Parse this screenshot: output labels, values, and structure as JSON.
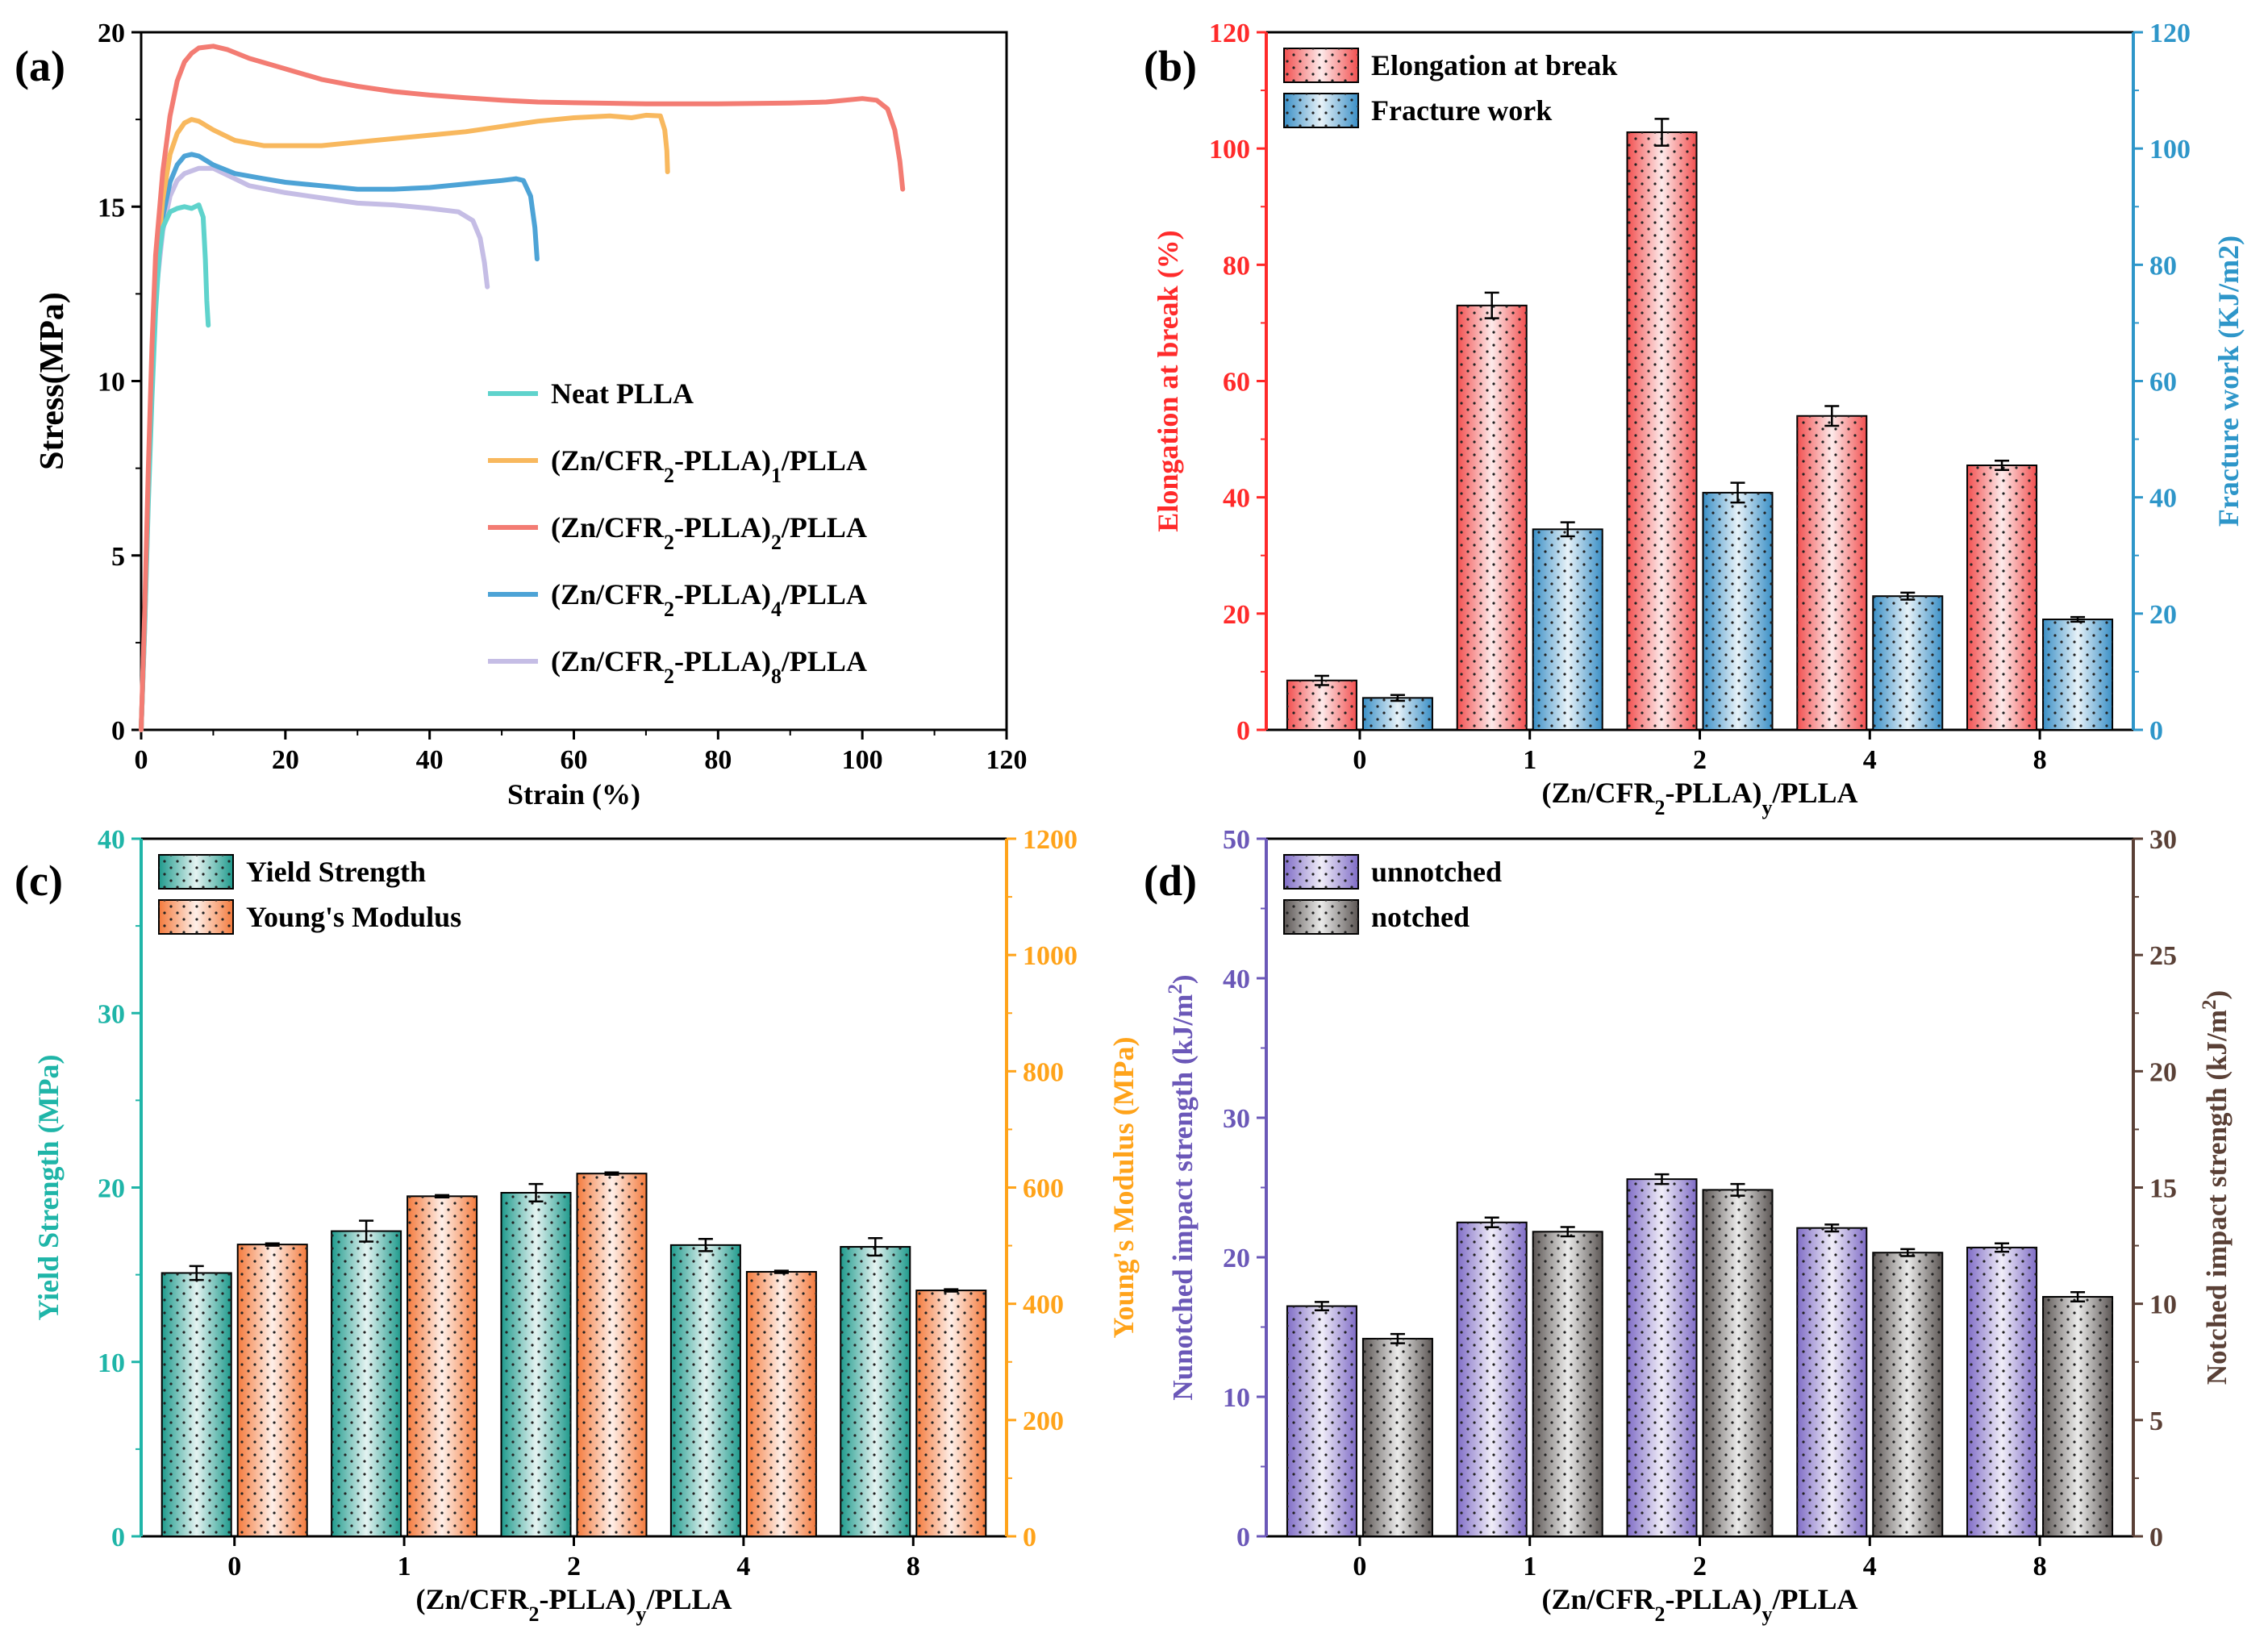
{
  "panels": [
    {
      "id": "a",
      "tag": "(a)"
    },
    {
      "id": "b",
      "tag": "(b)"
    },
    {
      "id": "c",
      "tag": "(c)"
    },
    {
      "id": "d",
      "tag": "(d)"
    }
  ],
  "chart_data": [
    {
      "panel": "a",
      "type": "line",
      "xlabel": "Strain (%)",
      "ylabel": "Stress(MPa)",
      "xlim": [
        0,
        120
      ],
      "ylim": [
        0,
        20
      ],
      "xticks": [
        0,
        20,
        40,
        60,
        80,
        100,
        120
      ],
      "yticks": [
        0,
        5,
        10,
        15,
        20
      ],
      "legend_position": "center-right",
      "series": [
        {
          "name": "Neat PLLA",
          "label": {
            "pre": "Neat PLLA",
            "sub": "",
            "mid": "",
            "sub2": "",
            "post": ""
          },
          "color": "#5fd3cc",
          "points": [
            [
              0,
              0
            ],
            [
              0.5,
              3
            ],
            [
              1,
              6.5
            ],
            [
              1.5,
              9.5
            ],
            [
              2,
              12
            ],
            [
              2.5,
              13.6
            ],
            [
              3,
              14.4
            ],
            [
              4,
              14.85
            ],
            [
              5,
              14.95
            ],
            [
              6,
              15.0
            ],
            [
              7,
              14.95
            ],
            [
              8,
              15.05
            ],
            [
              8.6,
              14.7
            ],
            [
              8.9,
              13.5
            ],
            [
              9.1,
              12.3
            ],
            [
              9.3,
              11.6
            ]
          ]
        },
        {
          "name": "(Zn/CFR2-PLLA)1/PLLA",
          "label": {
            "pre": "(Zn/CFR",
            "sub": "2",
            "mid": "-PLLA)",
            "sub2": "1",
            "post": "/PLLA"
          },
          "color": "#f8b85e",
          "points": [
            [
              0,
              0
            ],
            [
              0.5,
              3.2
            ],
            [
              1,
              7
            ],
            [
              1.5,
              10.5
            ],
            [
              2,
              13
            ],
            [
              3,
              15.2
            ],
            [
              4,
              16.5
            ],
            [
              5,
              17.1
            ],
            [
              6,
              17.4
            ],
            [
              7,
              17.5
            ],
            [
              8,
              17.45
            ],
            [
              10,
              17.2
            ],
            [
              13,
              16.9
            ],
            [
              17,
              16.75
            ],
            [
              20,
              16.75
            ],
            [
              25,
              16.75
            ],
            [
              30,
              16.85
            ],
            [
              35,
              16.95
            ],
            [
              40,
              17.05
            ],
            [
              45,
              17.15
            ],
            [
              50,
              17.3
            ],
            [
              55,
              17.45
            ],
            [
              60,
              17.55
            ],
            [
              65,
              17.6
            ],
            [
              68,
              17.55
            ],
            [
              70,
              17.62
            ],
            [
              72,
              17.6
            ],
            [
              72.6,
              17.2
            ],
            [
              72.9,
              16.6
            ],
            [
              73,
              16.0
            ]
          ]
        },
        {
          "name": "(Zn/CFR2-PLLA)2/PLLA",
          "label": {
            "pre": "(Zn/CFR",
            "sub": "2",
            "mid": "-PLLA)",
            "sub2": "2",
            "post": "/PLLA"
          },
          "color": "#f37c73",
          "points": [
            [
              0,
              0
            ],
            [
              0.5,
              3.5
            ],
            [
              1,
              7.5
            ],
            [
              1.5,
              11
            ],
            [
              2,
              13.6
            ],
            [
              3,
              16
            ],
            [
              4,
              17.6
            ],
            [
              5,
              18.6
            ],
            [
              6,
              19.15
            ],
            [
              7,
              19.4
            ],
            [
              8,
              19.55
            ],
            [
              10,
              19.6
            ],
            [
              12,
              19.5
            ],
            [
              15,
              19.25
            ],
            [
              20,
              18.95
            ],
            [
              25,
              18.65
            ],
            [
              30,
              18.45
            ],
            [
              35,
              18.3
            ],
            [
              40,
              18.2
            ],
            [
              45,
              18.12
            ],
            [
              50,
              18.05
            ],
            [
              55,
              18.0
            ],
            [
              60,
              17.98
            ],
            [
              70,
              17.95
            ],
            [
              80,
              17.95
            ],
            [
              90,
              17.97
            ],
            [
              95,
              18.0
            ],
            [
              100,
              18.1
            ],
            [
              102,
              18.05
            ],
            [
              103.5,
              17.8
            ],
            [
              104.5,
              17.2
            ],
            [
              105.2,
              16.3
            ],
            [
              105.6,
              15.5
            ]
          ]
        },
        {
          "name": "(Zn/CFR2-PLLA)4/PLLA",
          "label": {
            "pre": "(Zn/CFR",
            "sub": "2",
            "mid": "-PLLA)",
            "sub2": "4",
            "post": "/PLLA"
          },
          "color": "#4da3d6",
          "points": [
            [
              0,
              0
            ],
            [
              0.5,
              3.2
            ],
            [
              1,
              7
            ],
            [
              1.5,
              10.3
            ],
            [
              2,
              12.7
            ],
            [
              3,
              14.7
            ],
            [
              4,
              15.7
            ],
            [
              5,
              16.2
            ],
            [
              6,
              16.45
            ],
            [
              7,
              16.5
            ],
            [
              8,
              16.45
            ],
            [
              10,
              16.2
            ],
            [
              13,
              15.95
            ],
            [
              17,
              15.8
            ],
            [
              20,
              15.7
            ],
            [
              25,
              15.6
            ],
            [
              30,
              15.5
            ],
            [
              35,
              15.5
            ],
            [
              40,
              15.55
            ],
            [
              45,
              15.65
            ],
            [
              50,
              15.75
            ],
            [
              52,
              15.8
            ],
            [
              53,
              15.75
            ],
            [
              54,
              15.3
            ],
            [
              54.6,
              14.4
            ],
            [
              54.9,
              13.5
            ]
          ]
        },
        {
          "name": "(Zn/CFR2-PLLA)8/PLLA",
          "label": {
            "pre": "(Zn/CFR",
            "sub": "2",
            "mid": "-PLLA)",
            "sub2": "8",
            "post": "/PLLA"
          },
          "color": "#c5bde5",
          "points": [
            [
              0,
              0
            ],
            [
              0.5,
              3
            ],
            [
              1,
              6.8
            ],
            [
              1.5,
              10
            ],
            [
              2,
              12.4
            ],
            [
              3,
              14.3
            ],
            [
              4,
              15.3
            ],
            [
              5,
              15.75
            ],
            [
              6,
              15.95
            ],
            [
              8,
              16.1
            ],
            [
              10,
              16.1
            ],
            [
              12,
              15.9
            ],
            [
              15,
              15.6
            ],
            [
              20,
              15.4
            ],
            [
              25,
              15.25
            ],
            [
              30,
              15.1
            ],
            [
              35,
              15.05
            ],
            [
              40,
              14.95
            ],
            [
              44,
              14.85
            ],
            [
              46,
              14.6
            ],
            [
              47,
              14.1
            ],
            [
              47.6,
              13.4
            ],
            [
              48,
              12.7
            ]
          ]
        }
      ]
    },
    {
      "panel": "b",
      "type": "bar",
      "categories": [
        "0",
        "1",
        "2",
        "4",
        "8"
      ],
      "xlabel": {
        "pre": "(Zn/CFR",
        "sub": "2",
        "mid": "-PLLA)",
        "sub2": "y",
        "post": "/PLLA"
      },
      "ylabel_left": "Elongation at break (%)",
      "ylabel_right": "Fracture work (KJ/m2)",
      "ylim_left": [
        0,
        120
      ],
      "yticks_left": [
        0,
        20,
        40,
        60,
        80,
        100,
        120
      ],
      "ylim_right": [
        0,
        120
      ],
      "yticks_right": [
        0,
        20,
        40,
        60,
        80,
        100,
        120
      ],
      "left_axis_color": "#ff2a2a",
      "right_axis_color": "#2e96c9",
      "legend_position": "top-left",
      "series": [
        {
          "name": "Elongation at break",
          "axis": "left",
          "color": "#f24f4f",
          "values": [
            8.5,
            73,
            102.8,
            54,
            45.5
          ],
          "errors": [
            0.8,
            2.2,
            2.3,
            1.7,
            0.8
          ]
        },
        {
          "name": "Fracture work",
          "axis": "right",
          "color": "#3a8fc6",
          "values": [
            5.5,
            34.5,
            40.8,
            23,
            19
          ],
          "errors": [
            0.5,
            1.2,
            1.7,
            0.6,
            0.4
          ]
        }
      ]
    },
    {
      "panel": "c",
      "type": "bar",
      "categories": [
        "0",
        "1",
        "2",
        "4",
        "8"
      ],
      "xlabel": {
        "pre": "(Zn/CFR",
        "sub": "2",
        "mid": "-PLLA)",
        "sub2": "y",
        "post": "/PLLA"
      },
      "ylabel_left": "Yield Strength (MPa)",
      "ylabel_right": "Young's Modulus (MPa)",
      "ylim_left": [
        0,
        40
      ],
      "yticks_left": [
        0,
        10,
        20,
        30,
        40
      ],
      "ylim_right": [
        0,
        1200
      ],
      "yticks_right": [
        0,
        200,
        400,
        600,
        800,
        1000,
        1200
      ],
      "left_axis_color": "#1fb5a8",
      "right_axis_color": "#ffa31a",
      "legend_position": "top-left",
      "series": [
        {
          "name": "Yield Strength",
          "axis": "left",
          "color": "#1e9a8c",
          "values": [
            15.1,
            17.5,
            19.7,
            16.7,
            16.6
          ],
          "errors": [
            0.4,
            0.6,
            0.5,
            0.35,
            0.5
          ]
        },
        {
          "name": "Young's Modulus",
          "axis": "right",
          "color": "#f47a3c",
          "values": [
            502,
            585,
            624,
            455,
            423
          ],
          "errors": [
            2,
            2,
            2,
            2,
            2
          ]
        }
      ]
    },
    {
      "panel": "d",
      "type": "bar",
      "categories": [
        "0",
        "1",
        "2",
        "4",
        "8"
      ],
      "xlabel": {
        "pre": "(Zn/CFR",
        "sub": "2",
        "mid": "-PLLA)",
        "sub2": "y",
        "post": "/PLLA"
      },
      "ylabel_left": {
        "pre": "Nunotched impact strength (kJ/m",
        "sup": "2",
        "post": ")"
      },
      "ylabel_right": {
        "pre": "Notched impact strength (kJ/m",
        "sup": "2",
        "post": ")"
      },
      "ylim_left": [
        0,
        50
      ],
      "yticks_left": [
        0,
        10,
        20,
        30,
        40,
        50
      ],
      "ylim_right": [
        0,
        30
      ],
      "yticks_right": [
        0,
        5,
        10,
        15,
        20,
        25,
        30
      ],
      "left_axis_color": "#6b58b8",
      "right_axis_color": "#5a4036",
      "legend_position": "top-left",
      "series": [
        {
          "name": "unnotched",
          "axis": "left",
          "color": "#7f6cc6",
          "values": [
            16.5,
            22.5,
            25.6,
            22.1,
            20.7
          ],
          "errors": [
            0.3,
            0.35,
            0.35,
            0.25,
            0.3
          ]
        },
        {
          "name": "notched",
          "axis": "right",
          "color": "#5b5553",
          "values": [
            8.5,
            13.1,
            14.9,
            12.2,
            10.3
          ],
          "errors": [
            0.2,
            0.2,
            0.25,
            0.15,
            0.2
          ]
        }
      ]
    }
  ]
}
